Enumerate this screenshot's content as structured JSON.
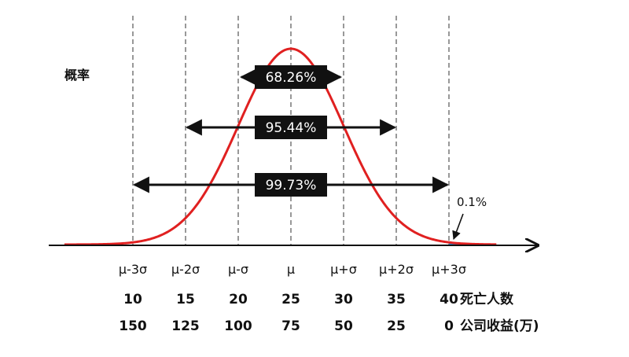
{
  "chart_data": {
    "type": "line",
    "title": "",
    "ylabel": "概率",
    "xlabel": "",
    "distribution": {
      "mean": 25,
      "sigma": 5
    },
    "x_range": [
      3.5,
      44.5
    ],
    "sigma_ticks": [
      {
        "x": 10,
        "label": "μ-3σ",
        "deaths": "10",
        "profit": "150"
      },
      {
        "x": 15,
        "label": "μ-2σ",
        "deaths": "15",
        "profit": "125"
      },
      {
        "x": 20,
        "label": "μ-σ",
        "deaths": "20",
        "profit": "100"
      },
      {
        "x": 25,
        "label": "μ",
        "deaths": "25",
        "profit": "75"
      },
      {
        "x": 30,
        "label": "μ+σ",
        "deaths": "30",
        "profit": "50"
      },
      {
        "x": 35,
        "label": "μ+2σ",
        "deaths": "35",
        "profit": "25"
      },
      {
        "x": 40,
        "label": "μ+3σ",
        "deaths": "40",
        "profit": "0"
      }
    ],
    "row_labels": {
      "deaths": "死亡人数",
      "profit": "公司收益(万)"
    },
    "intervals": [
      {
        "from": 20,
        "to": 30,
        "label": "68.26%"
      },
      {
        "from": 15,
        "to": 35,
        "label": "95.44%"
      },
      {
        "from": 10,
        "to": 40,
        "label": "99.73%"
      }
    ],
    "tail_annotation": {
      "at": 40,
      "label": "0.1%"
    },
    "grid": false,
    "colors": {
      "curve": "#e02020",
      "tail_fill": "#2f8fd8",
      "label_box": "#111111",
      "label_text": "#ffffff"
    }
  }
}
